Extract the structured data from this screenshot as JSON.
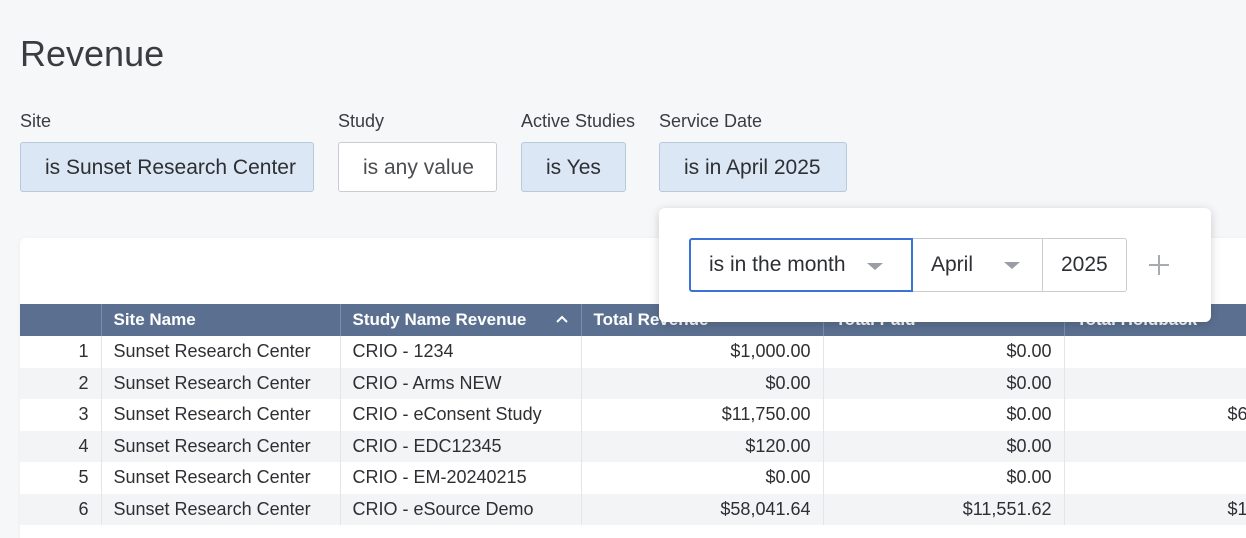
{
  "page": {
    "title": "Revenue"
  },
  "filters": [
    {
      "label": "Site",
      "value": "is Sunset Research Center"
    },
    {
      "label": "Study",
      "value": "is any value"
    },
    {
      "label": "Active Studies",
      "value": "is Yes"
    },
    {
      "label": "Service Date",
      "value": "is in April 2025"
    }
  ],
  "date_popover": {
    "operator": "is in the month",
    "month": "April",
    "year": "2025",
    "add_icon": "plus-icon"
  },
  "table": {
    "columns": [
      "",
      "Site Name",
      "Study Name Revenue",
      "Total Revenue",
      "Total Paid",
      "Total Holdback"
    ],
    "sorted_column": "Study Name Revenue",
    "sort_direction": "ascending",
    "rows": [
      {
        "n": "1",
        "site": "Sunset Research Center",
        "study": "CRIO - 1234",
        "revenue": "$1,000.00",
        "paid": "$0.00",
        "holdback": ""
      },
      {
        "n": "2",
        "site": "Sunset Research Center",
        "study": "CRIO - Arms NEW",
        "revenue": "$0.00",
        "paid": "$0.00",
        "holdback": ""
      },
      {
        "n": "3",
        "site": "Sunset Research Center",
        "study": "CRIO - eConsent Study",
        "revenue": "$11,750.00",
        "paid": "$0.00",
        "holdback": "$6"
      },
      {
        "n": "4",
        "site": "Sunset Research Center",
        "study": "CRIO - EDC12345",
        "revenue": "$120.00",
        "paid": "$0.00",
        "holdback": ""
      },
      {
        "n": "5",
        "site": "Sunset Research Center",
        "study": "CRIO - EM-20240215",
        "revenue": "$0.00",
        "paid": "$0.00",
        "holdback": ""
      },
      {
        "n": "6",
        "site": "Sunset Research Center",
        "study": "CRIO - eSource Demo",
        "revenue": "$58,041.64",
        "paid": "$11,551.62",
        "holdback": "$1"
      }
    ]
  },
  "colors": {
    "header_bg": "#5b7090",
    "pill_active_bg": "#dce7f5",
    "focus_border": "#3a72d6"
  }
}
